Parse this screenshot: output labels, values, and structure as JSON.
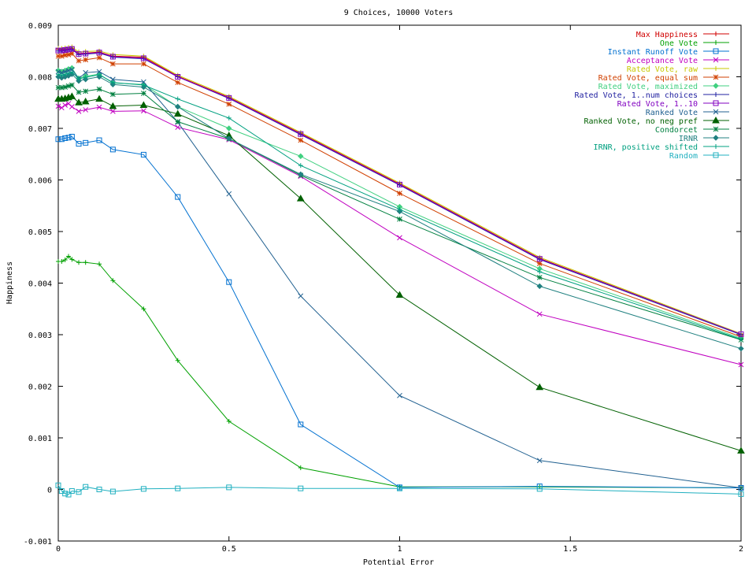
{
  "chart_data": {
    "type": "line",
    "title": "9 Choices, 10000 Voters",
    "xlabel": "Potential Error",
    "ylabel": "Happiness",
    "xlim": [
      0,
      2
    ],
    "ylim": [
      -0.001,
      0.009
    ],
    "xticks": [
      0,
      0.5,
      1,
      1.5,
      2
    ],
    "xtick_labels": [
      "0",
      "0.5",
      "1",
      "1.5",
      "2"
    ],
    "yticks": [
      -0.001,
      0,
      0.001,
      0.002,
      0.003,
      0.004,
      0.005,
      0.006,
      0.007,
      0.008,
      0.009
    ],
    "ytick_labels": [
      "-0.001",
      "0",
      "0.001",
      "0.002",
      "0.003",
      "0.004",
      "0.005",
      "0.006",
      "0.007",
      "0.008",
      "0.009"
    ],
    "grid": false,
    "legend_position": "top-right",
    "x": [
      0,
      0.01,
      0.02,
      0.03,
      0.04,
      0.06,
      0.08,
      0.12,
      0.16,
      0.25,
      0.35,
      0.5,
      0.71,
      1.0,
      1.41,
      2.0
    ],
    "series": [
      {
        "name": "Max Happiness",
        "color": "#d00000",
        "marker": "plus",
        "values": [
          0.00853,
          0.00853,
          0.00853,
          0.00854,
          0.00855,
          0.00845,
          0.00846,
          0.00848,
          0.0084,
          0.00838,
          0.00801,
          0.0076,
          0.0069,
          0.00592,
          0.00448,
          0.00301
        ]
      },
      {
        "name": "One Vote",
        "color": "#00a000",
        "marker": "plus",
        "values": [
          0.00442,
          0.00442,
          0.00445,
          0.00452,
          0.00446,
          0.0044,
          0.0044,
          0.00437,
          0.00405,
          0.0035,
          0.0025,
          0.00132,
          0.00042,
          5e-05,
          5e-05,
          3e-05
        ]
      },
      {
        "name": "Instant Runoff Vote",
        "color": "#0070d0",
        "marker": "square",
        "values": [
          0.00679,
          0.00679,
          0.00681,
          0.00682,
          0.00684,
          0.0067,
          0.00672,
          0.00677,
          0.00659,
          0.00649,
          0.00567,
          0.00402,
          0.00126,
          4e-05,
          6e-05,
          3e-05
        ]
      },
      {
        "name": "Acceptance Vote",
        "color": "#c000c0",
        "marker": "x",
        "values": [
          0.00743,
          0.0074,
          0.00745,
          0.00748,
          0.00742,
          0.00733,
          0.00736,
          0.00741,
          0.00733,
          0.00734,
          0.00702,
          0.00678,
          0.00607,
          0.00488,
          0.0034,
          0.00242
        ]
      },
      {
        "name": "Rated Vote, raw",
        "color": "#c8c800",
        "marker": "plus",
        "values": [
          0.00855,
          0.00855,
          0.00856,
          0.00857,
          0.00858,
          0.00848,
          0.00849,
          0.0085,
          0.00843,
          0.0084,
          0.00803,
          0.00762,
          0.00692,
          0.00594,
          0.0045,
          0.00302
        ]
      },
      {
        "name": "Rated Vote, equal sum",
        "color": "#d04000",
        "marker": "star",
        "values": [
          0.0084,
          0.0084,
          0.00842,
          0.00843,
          0.00845,
          0.00831,
          0.00833,
          0.00837,
          0.00825,
          0.00825,
          0.00789,
          0.00747,
          0.00677,
          0.00574,
          0.00438,
          0.00296
        ]
      },
      {
        "name": "Rated Vote, maximized",
        "color": "#40d080",
        "marker": "diamond",
        "values": [
          0.00812,
          0.0081,
          0.00812,
          0.00815,
          0.00817,
          0.00797,
          0.00801,
          0.00805,
          0.00788,
          0.00785,
          0.00742,
          0.007,
          0.00646,
          0.00548,
          0.00428,
          0.00293
        ]
      },
      {
        "name": "Rated Vote, 1..num choices",
        "color": "#2020a0",
        "marker": "plus",
        "values": [
          0.0085,
          0.0085,
          0.00851,
          0.00852,
          0.00853,
          0.00843,
          0.00844,
          0.00846,
          0.00838,
          0.00835,
          0.008,
          0.00758,
          0.00688,
          0.0059,
          0.00446,
          0.003
        ]
      },
      {
        "name": "Rated Vote, 1..10",
        "color": "#8000c0",
        "marker": "square",
        "values": [
          0.00851,
          0.00851,
          0.00852,
          0.00853,
          0.00854,
          0.00844,
          0.00845,
          0.00847,
          0.00839,
          0.00836,
          0.008,
          0.00759,
          0.00689,
          0.00591,
          0.00447,
          0.00301
        ]
      },
      {
        "name": "Ranked Vote",
        "color": "#206090",
        "marker": "x",
        "values": [
          0.0081,
          0.00808,
          0.0081,
          0.00812,
          0.00814,
          0.00797,
          0.00808,
          0.0081,
          0.00795,
          0.0079,
          0.00712,
          0.00573,
          0.00375,
          0.00182,
          0.00056,
          3e-05
        ]
      },
      {
        "name": "Ranked Vote, no neg pref",
        "color": "#006000",
        "marker": "triangle",
        "values": [
          0.00757,
          0.00757,
          0.00758,
          0.0076,
          0.00762,
          0.0075,
          0.00752,
          0.00757,
          0.00743,
          0.00745,
          0.00728,
          0.00686,
          0.00564,
          0.00377,
          0.00198,
          0.00075
        ]
      },
      {
        "name": "Condorcet",
        "color": "#008040",
        "marker": "star",
        "values": [
          0.00779,
          0.00779,
          0.0078,
          0.00782,
          0.00784,
          0.0077,
          0.00772,
          0.00776,
          0.00766,
          0.00768,
          0.00713,
          0.0068,
          0.00609,
          0.00524,
          0.00411,
          0.0029
        ]
      },
      {
        "name": "IRNR",
        "color": "#208080",
        "marker": "diamond",
        "values": [
          0.008,
          0.00798,
          0.008,
          0.00802,
          0.00805,
          0.00792,
          0.00795,
          0.008,
          0.00785,
          0.0078,
          0.00742,
          0.0068,
          0.00611,
          0.00539,
          0.00394,
          0.00273
        ]
      },
      {
        "name": "IRNR, positive shifted",
        "color": "#00a080",
        "marker": "plus",
        "values": [
          0.00805,
          0.00803,
          0.00805,
          0.00807,
          0.00809,
          0.00796,
          0.00799,
          0.00804,
          0.00789,
          0.00784,
          0.00757,
          0.0072,
          0.00628,
          0.00543,
          0.00422,
          0.00291
        ]
      },
      {
        "name": "Random",
        "color": "#20b0c0",
        "marker": "square",
        "values": [
          8e-05,
          -3e-05,
          -8e-05,
          -0.0001,
          -3e-05,
          -5e-05,
          5e-05,
          0.0,
          -4e-05,
          1e-05,
          2e-05,
          4e-05,
          2e-05,
          2e-05,
          1e-05,
          -9e-05
        ]
      }
    ]
  }
}
